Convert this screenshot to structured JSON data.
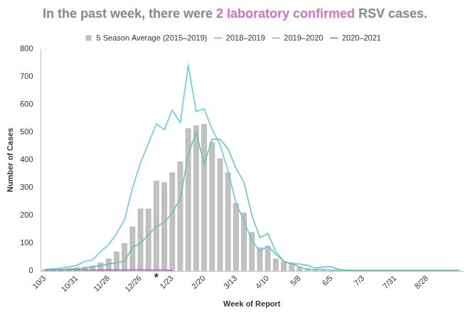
{
  "chart_data": {
    "type": "bar",
    "title": "In the past week, there were 2 laboratory confirmed RSV cases.",
    "title_highlight": "2 laboratory confirmed",
    "x_label": "Week of Report",
    "y_label": "Number of Cases",
    "categories": [
      "10/3",
      null,
      null,
      null,
      "10/31",
      null,
      null,
      null,
      "11/28",
      null,
      null,
      null,
      "12/26",
      null,
      null,
      null,
      "1/23",
      null,
      null,
      null,
      "2/20",
      null,
      null,
      null,
      "3/13",
      null,
      null,
      null,
      "4/10",
      null,
      null,
      null,
      "5/8",
      null,
      null,
      null,
      "6/5",
      null,
      null,
      null,
      "7/3",
      null,
      null,
      null,
      "7/31",
      null,
      null,
      null,
      "8/28",
      null,
      null,
      null,
      null
    ],
    "series": [
      {
        "name": "5 Season Average (2015–2019)",
        "type": "bar",
        "color": "#c0c0c0",
        "values": [
          5,
          6,
          8,
          10,
          12,
          15,
          20,
          30,
          45,
          70,
          100,
          160,
          225,
          225,
          325,
          320,
          355,
          395,
          515,
          525,
          530,
          465,
          405,
          355,
          245,
          210,
          140,
          85,
          90,
          45,
          35,
          30,
          15,
          10,
          5,
          4,
          3,
          3,
          2,
          2,
          2,
          2,
          1,
          1,
          1,
          1,
          1,
          1,
          1,
          1,
          1,
          1,
          1
        ]
      },
      {
        "name": "2018–2019",
        "type": "line",
        "color": "#5ec6a9",
        "values": [
          5,
          5,
          5,
          6,
          8,
          10,
          15,
          20,
          25,
          30,
          35,
          85,
          100,
          130,
          160,
          175,
          210,
          260,
          420,
          500,
          385,
          475,
          475,
          440,
          370,
          320,
          200,
          120,
          135,
          70,
          35,
          25,
          25,
          20,
          10,
          15,
          15,
          5,
          3,
          2,
          2,
          2,
          2,
          2,
          2,
          2,
          2,
          2,
          2,
          2,
          2,
          2,
          2
        ]
      },
      {
        "name": "2019–2020",
        "type": "line",
        "color": "#5bcbe0",
        "values": [
          5,
          8,
          10,
          15,
          20,
          35,
          40,
          70,
          95,
          135,
          185,
          300,
          390,
          460,
          530,
          510,
          580,
          535,
          740,
          575,
          585,
          510,
          455,
          360,
          245,
          180,
          110,
          70,
          90,
          60,
          35,
          25,
          15,
          5,
          5,
          5,
          3,
          3,
          2,
          2,
          2,
          2,
          2,
          2,
          2,
          2,
          2,
          2,
          2,
          2,
          2,
          2,
          2
        ]
      },
      {
        "name": "2020–2021",
        "type": "line",
        "color": "#c054c0",
        "values": [
          3,
          3,
          3,
          4,
          4,
          4,
          3,
          3,
          4,
          3,
          3,
          4,
          4,
          3,
          3,
          3,
          2,
          null,
          null,
          null,
          null,
          null,
          null,
          null,
          null,
          null,
          null,
          null,
          null,
          null,
          null,
          null,
          null,
          null,
          null,
          null,
          null,
          null,
          null,
          null,
          null,
          null,
          null,
          null,
          null,
          null,
          null,
          null,
          null,
          null,
          null,
          null,
          null
        ]
      }
    ],
    "annotations": [
      {
        "text": "*",
        "index": 14
      }
    ],
    "ylim": [
      0,
      800
    ],
    "yticks": [
      0,
      100,
      200,
      300,
      400,
      500,
      600,
      700,
      800
    ],
    "grid": false,
    "legend": "top"
  }
}
